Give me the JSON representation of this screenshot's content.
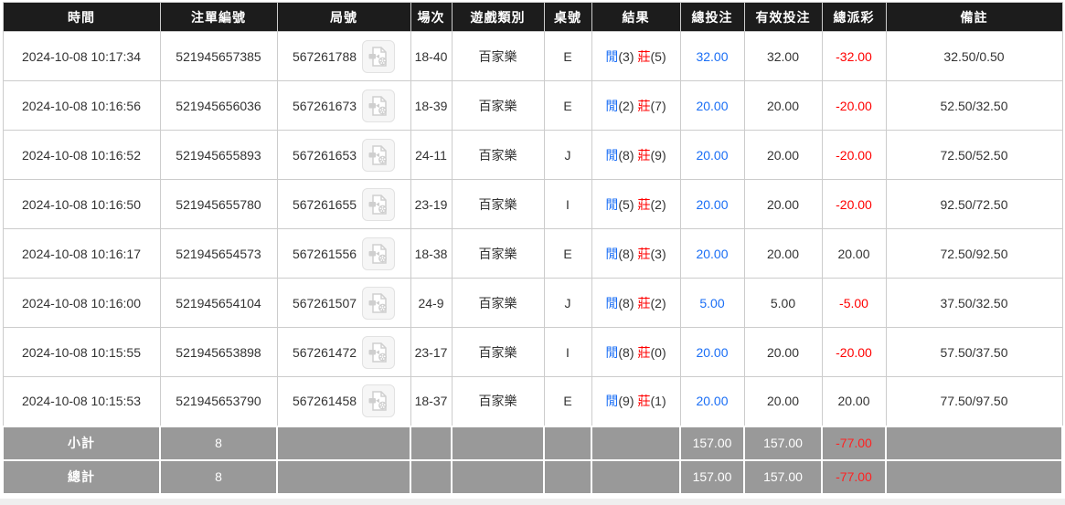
{
  "colors": {
    "header_bg": "#1c1c1c",
    "header_text": "#ffffff",
    "border": "#cccccc",
    "body_text": "#333333",
    "accent_blue": "#1a6ef5",
    "accent_red": "#ff0000",
    "summary_bg": "#999999",
    "summary_text": "#ffffff"
  },
  "table": {
    "columns": [
      {
        "key": "time",
        "label": "時間"
      },
      {
        "key": "bet_id",
        "label": "注單編號"
      },
      {
        "key": "round",
        "label": "局號"
      },
      {
        "key": "session",
        "label": "場次"
      },
      {
        "key": "game_type",
        "label": "遊戲類別"
      },
      {
        "key": "table_id",
        "label": "桌號"
      },
      {
        "key": "result",
        "label": "結果"
      },
      {
        "key": "total_bet",
        "label": "總投注"
      },
      {
        "key": "valid_bet",
        "label": "有效投注"
      },
      {
        "key": "payout",
        "label": "總派彩"
      },
      {
        "key": "remark",
        "label": "備註"
      }
    ],
    "video_icon": "video-file-icon",
    "rows": [
      {
        "time": "2024-10-08 10:17:34",
        "bet_id": "521945657385",
        "round": "567261788",
        "session": "18-40",
        "game_type": "百家樂",
        "table_id": "E",
        "result": {
          "player_label": "閒",
          "player_score": "(3)",
          "banker_label": "莊",
          "banker_score": "(5)"
        },
        "total_bet": "32.00",
        "valid_bet": "32.00",
        "payout": "-32.00",
        "remark": "32.50/0.50"
      },
      {
        "time": "2024-10-08 10:16:56",
        "bet_id": "521945656036",
        "round": "567261673",
        "session": "18-39",
        "game_type": "百家樂",
        "table_id": "E",
        "result": {
          "player_label": "閒",
          "player_score": "(2)",
          "banker_label": "莊",
          "banker_score": "(7)"
        },
        "total_bet": "20.00",
        "valid_bet": "20.00",
        "payout": "-20.00",
        "remark": "52.50/32.50"
      },
      {
        "time": "2024-10-08 10:16:52",
        "bet_id": "521945655893",
        "round": "567261653",
        "session": "24-11",
        "game_type": "百家樂",
        "table_id": "J",
        "result": {
          "player_label": "閒",
          "player_score": "(8)",
          "banker_label": "莊",
          "banker_score": "(9)"
        },
        "total_bet": "20.00",
        "valid_bet": "20.00",
        "payout": "-20.00",
        "remark": "72.50/52.50"
      },
      {
        "time": "2024-10-08 10:16:50",
        "bet_id": "521945655780",
        "round": "567261655",
        "session": "23-19",
        "game_type": "百家樂",
        "table_id": "I",
        "result": {
          "player_label": "閒",
          "player_score": "(5)",
          "banker_label": "莊",
          "banker_score": "(2)"
        },
        "total_bet": "20.00",
        "valid_bet": "20.00",
        "payout": "-20.00",
        "remark": "92.50/72.50"
      },
      {
        "time": "2024-10-08 10:16:17",
        "bet_id": "521945654573",
        "round": "567261556",
        "session": "18-38",
        "game_type": "百家樂",
        "table_id": "E",
        "result": {
          "player_label": "閒",
          "player_score": "(8)",
          "banker_label": "莊",
          "banker_score": "(3)"
        },
        "total_bet": "20.00",
        "valid_bet": "20.00",
        "payout": "20.00",
        "remark": "72.50/92.50"
      },
      {
        "time": "2024-10-08 10:16:00",
        "bet_id": "521945654104",
        "round": "567261507",
        "session": "24-9",
        "game_type": "百家樂",
        "table_id": "J",
        "result": {
          "player_label": "閒",
          "player_score": "(8)",
          "banker_label": "莊",
          "banker_score": "(2)"
        },
        "total_bet": "5.00",
        "valid_bet": "5.00",
        "payout": "-5.00",
        "remark": "37.50/32.50"
      },
      {
        "time": "2024-10-08 10:15:55",
        "bet_id": "521945653898",
        "round": "567261472",
        "session": "23-17",
        "game_type": "百家樂",
        "table_id": "I",
        "result": {
          "player_label": "閒",
          "player_score": "(8)",
          "banker_label": "莊",
          "banker_score": "(0)"
        },
        "total_bet": "20.00",
        "valid_bet": "20.00",
        "payout": "-20.00",
        "remark": "57.50/37.50"
      },
      {
        "time": "2024-10-08 10:15:53",
        "bet_id": "521945653790",
        "round": "567261458",
        "session": "18-37",
        "game_type": "百家樂",
        "table_id": "E",
        "result": {
          "player_label": "閒",
          "player_score": "(9)",
          "banker_label": "莊",
          "banker_score": "(1)"
        },
        "total_bet": "20.00",
        "valid_bet": "20.00",
        "payout": "20.00",
        "remark": "77.50/97.50"
      }
    ],
    "summary": {
      "subtotal": {
        "label": "小計",
        "count": "8",
        "total_bet": "157.00",
        "valid_bet": "157.00",
        "payout": "-77.00"
      },
      "total": {
        "label": "總計",
        "count": "8",
        "total_bet": "157.00",
        "valid_bet": "157.00",
        "payout": "-77.00"
      }
    }
  }
}
